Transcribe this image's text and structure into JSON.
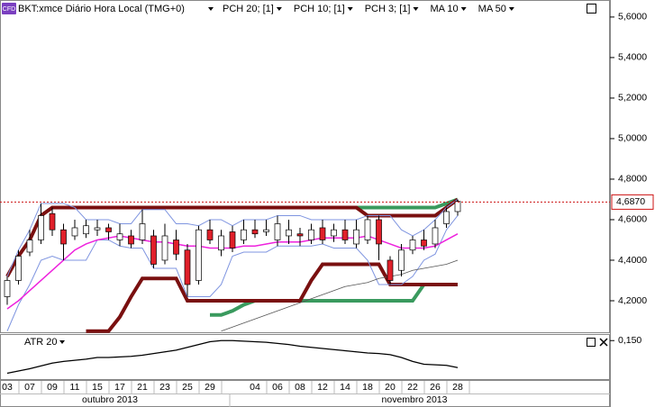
{
  "header": {
    "icon": "CFD",
    "symbol": "BKT:xmce Diário Hora Local (TMG+0)"
  },
  "chart_data": [
    {
      "type": "candlestick",
      "categories": [
        "03",
        null,
        "07",
        null,
        "09",
        null,
        "11",
        null,
        "15",
        null,
        "17",
        null,
        "21",
        null,
        "23",
        null,
        "25",
        null,
        "29",
        null,
        null,
        null,
        "04",
        null,
        "06",
        null,
        "08",
        null,
        "12",
        null,
        "14",
        null,
        "18",
        null,
        "20",
        null,
        "22",
        null,
        "26",
        null,
        "28"
      ],
      "months": [
        "outubro 2013",
        "novembro 2013"
      ],
      "open": [
        4.22,
        4.3,
        4.44,
        4.5,
        4.63,
        4.55,
        4.52,
        4.53,
        4.55,
        4.56,
        4.5,
        4.52,
        4.5,
        4.52,
        4.4,
        4.5,
        4.45,
        4.3,
        4.55,
        4.45,
        4.54,
        4.5,
        4.55,
        4.54,
        4.5,
        4.52,
        4.53,
        4.5,
        4.56,
        4.52,
        4.55,
        4.48,
        4.5,
        4.6,
        4.4,
        4.35,
        4.45,
        4.5,
        4.48,
        4.58,
        4.64
      ],
      "high": [
        4.32,
        4.45,
        4.55,
        4.68,
        4.66,
        4.58,
        4.6,
        4.6,
        4.6,
        4.58,
        4.58,
        4.55,
        4.65,
        4.55,
        4.58,
        4.55,
        4.48,
        4.57,
        4.6,
        4.55,
        4.57,
        4.6,
        4.6,
        4.6,
        4.62,
        4.6,
        4.56,
        4.58,
        4.6,
        4.58,
        4.6,
        4.6,
        4.62,
        4.62,
        4.42,
        4.48,
        4.52,
        4.55,
        4.6,
        4.66,
        4.7
      ],
      "low": [
        4.18,
        4.28,
        4.42,
        4.48,
        4.52,
        4.4,
        4.5,
        4.51,
        4.52,
        4.5,
        4.47,
        4.46,
        4.48,
        4.36,
        4.38,
        4.4,
        4.22,
        4.28,
        4.48,
        4.42,
        4.44,
        4.48,
        4.51,
        4.52,
        4.47,
        4.48,
        4.47,
        4.48,
        4.48,
        4.49,
        4.48,
        4.46,
        4.48,
        4.4,
        4.28,
        4.32,
        4.43,
        4.45,
        4.46,
        4.56,
        4.62
      ],
      "close": [
        4.3,
        4.42,
        4.5,
        4.62,
        4.55,
        4.48,
        4.56,
        4.57,
        4.56,
        4.54,
        4.53,
        4.48,
        4.58,
        4.38,
        4.52,
        4.43,
        4.28,
        4.55,
        4.5,
        4.52,
        4.46,
        4.55,
        4.53,
        4.55,
        4.58,
        4.55,
        4.52,
        4.55,
        4.5,
        4.55,
        4.5,
        4.55,
        4.6,
        4.48,
        4.3,
        4.45,
        4.5,
        4.47,
        4.56,
        4.64,
        4.69
      ],
      "up_color": "#ffffff",
      "down_color": "#e0202a",
      "channels": [
        {
          "name": "PCH 20; [1]",
          "color": "#3a9a5e",
          "upper": [
            null,
            null,
            null,
            null,
            4.66,
            4.66,
            4.66,
            4.66,
            4.66,
            4.66,
            4.66,
            4.66,
            4.66,
            4.66,
            4.66,
            4.66,
            4.66,
            4.66,
            4.66,
            4.66,
            4.66,
            4.66,
            4.66,
            4.66,
            4.66,
            4.66,
            4.66,
            4.66,
            4.66,
            4.66,
            4.66,
            4.66,
            4.66,
            4.66,
            4.66,
            4.66,
            4.66,
            4.66,
            4.66,
            4.68,
            4.7
          ],
          "lower": [
            null,
            null,
            null,
            null,
            null,
            null,
            null,
            null,
            null,
            null,
            null,
            null,
            null,
            null,
            null,
            null,
            null,
            null,
            4.13,
            4.13,
            4.15,
            4.18,
            4.2,
            4.2,
            4.2,
            4.2,
            4.2,
            4.2,
            4.2,
            4.2,
            4.2,
            4.2,
            4.2,
            4.2,
            4.2,
            4.2,
            4.2,
            4.28,
            4.28,
            4.28,
            4.28
          ]
        },
        {
          "name": "PCH 10; [1]",
          "color": "#7a1010",
          "upper": [
            4.32,
            4.42,
            4.5,
            4.62,
            4.66,
            4.66,
            4.66,
            4.66,
            4.66,
            4.66,
            4.66,
            4.66,
            4.66,
            4.66,
            4.66,
            4.66,
            4.66,
            4.66,
            4.66,
            4.66,
            4.66,
            4.66,
            4.66,
            4.66,
            4.66,
            4.66,
            4.66,
            4.66,
            4.66,
            4.66,
            4.66,
            4.66,
            4.62,
            4.62,
            4.62,
            4.62,
            4.62,
            4.62,
            4.62,
            4.66,
            4.7
          ],
          "lower": [
            null,
            null,
            null,
            null,
            null,
            null,
            null,
            4.05,
            4.05,
            4.05,
            4.12,
            4.22,
            4.31,
            4.31,
            4.31,
            4.31,
            4.2,
            4.2,
            4.2,
            4.2,
            4.2,
            4.2,
            4.2,
            4.2,
            4.2,
            4.2,
            4.2,
            4.3,
            4.38,
            4.38,
            4.38,
            4.38,
            4.38,
            4.38,
            4.28,
            4.28,
            4.28,
            4.28,
            4.28,
            4.28,
            4.28
          ]
        },
        {
          "name": "PCH 3; [1]",
          "color": "#7f95e0",
          "upper": [
            4.32,
            4.45,
            4.55,
            4.68,
            4.68,
            4.68,
            4.66,
            4.6,
            4.6,
            4.6,
            4.58,
            4.58,
            4.65,
            4.65,
            4.65,
            4.58,
            4.58,
            4.57,
            4.6,
            4.6,
            4.57,
            4.6,
            4.6,
            4.6,
            4.62,
            4.62,
            4.62,
            4.6,
            4.6,
            4.6,
            4.6,
            4.6,
            4.62,
            4.62,
            4.62,
            4.55,
            4.52,
            4.55,
            4.6,
            4.66,
            4.7
          ],
          "lower": [
            4.05,
            4.18,
            4.28,
            4.4,
            4.42,
            4.4,
            4.4,
            4.4,
            4.5,
            4.5,
            4.47,
            4.46,
            4.46,
            4.36,
            4.36,
            4.36,
            4.22,
            4.22,
            4.22,
            4.28,
            4.42,
            4.44,
            4.44,
            4.44,
            4.47,
            4.47,
            4.47,
            4.47,
            4.48,
            4.46,
            4.46,
            4.46,
            4.4,
            4.28,
            4.28,
            4.28,
            4.32,
            4.4,
            4.43,
            4.55,
            4.62
          ]
        }
      ],
      "series": [
        {
          "name": "MA 10",
          "color": "#ee22dd",
          "values": [
            4.16,
            4.2,
            4.25,
            4.3,
            4.35,
            4.4,
            4.45,
            4.48,
            4.5,
            4.51,
            4.52,
            4.51,
            4.5,
            4.49,
            4.49,
            4.48,
            4.47,
            4.47,
            4.46,
            4.46,
            4.46,
            4.47,
            4.47,
            4.48,
            4.49,
            4.49,
            4.49,
            4.5,
            4.51,
            4.51,
            4.51,
            4.51,
            4.52,
            4.5,
            4.48,
            4.46,
            4.46,
            4.46,
            4.47,
            4.5,
            4.53
          ]
        },
        {
          "name": "MA 50",
          "color": "#555555",
          "values": [
            null,
            null,
            null,
            null,
            null,
            null,
            null,
            null,
            null,
            null,
            null,
            null,
            null,
            null,
            null,
            null,
            null,
            null,
            null,
            4.05,
            4.07,
            4.09,
            4.11,
            4.13,
            4.15,
            4.17,
            4.19,
            4.21,
            4.23,
            4.25,
            4.27,
            4.28,
            4.29,
            4.31,
            4.32,
            4.33,
            4.35,
            4.36,
            4.37,
            4.38,
            4.4
          ]
        }
      ],
      "last_price": {
        "value": 4.687,
        "label": "4,6870",
        "color": "#cc1111"
      },
      "ylim": [
        4.04,
        5.684
      ],
      "yticks": [
        {
          "value": 4.2,
          "label": "4,2000"
        },
        {
          "value": 4.4,
          "label": "4,4000"
        },
        {
          "value": 4.6,
          "label": "4,6000"
        },
        {
          "value": 4.8,
          "label": "4,8000"
        },
        {
          "value": 5.0,
          "label": "5,0000"
        },
        {
          "value": 5.2,
          "label": "5,2000"
        },
        {
          "value": 5.4,
          "label": "5,4000"
        },
        {
          "value": 5.6,
          "label": "5,6000"
        }
      ]
    },
    {
      "type": "line",
      "title": "ATR 20",
      "series": [
        {
          "name": "ATR 20",
          "color": "#000000",
          "values": [
            0.092,
            0.096,
            0.1,
            0.105,
            0.11,
            0.113,
            0.115,
            0.117,
            0.12,
            0.12,
            0.121,
            0.122,
            0.124,
            0.127,
            0.13,
            0.133,
            0.138,
            0.143,
            0.148,
            0.15,
            0.15,
            0.149,
            0.148,
            0.147,
            0.145,
            0.143,
            0.14,
            0.138,
            0.136,
            0.134,
            0.132,
            0.13,
            0.128,
            0.127,
            0.125,
            0.12,
            0.113,
            0.108,
            0.107,
            0.106,
            0.102
          ]
        }
      ],
      "ylim": [
        0.08,
        0.16
      ],
      "yticks": [
        {
          "value": 0.15,
          "label": "0,150"
        }
      ]
    }
  ]
}
